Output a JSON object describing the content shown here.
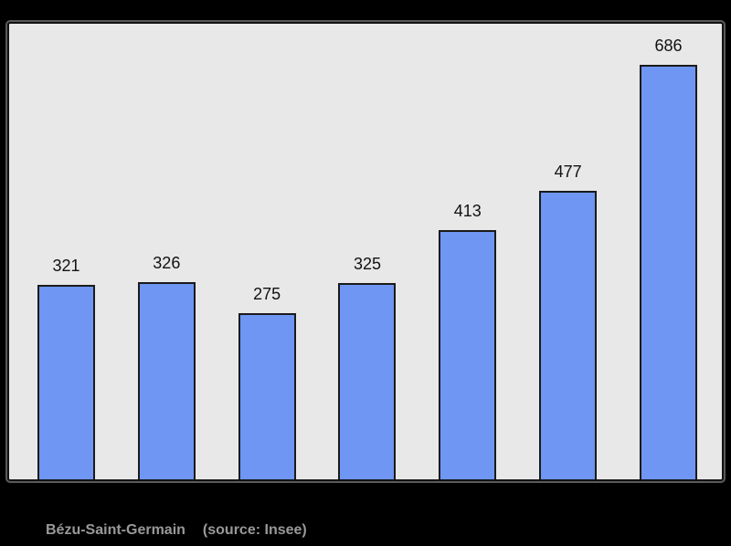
{
  "page": {
    "background_color": "#000000"
  },
  "chart": {
    "panel_background": "#E8E8E8",
    "panel_border_color": "#121212",
    "bar_fill_color": "#6E96F2",
    "bar_border_color": "#1A1A1A",
    "value_label_color": "#111111"
  },
  "chart_data": {
    "type": "bar",
    "values": [
      321,
      326,
      275,
      325,
      413,
      477,
      686
    ],
    "data_labels_shown": true,
    "title": "",
    "xlabel": "",
    "ylabel": "",
    "ylim": [
      0,
      760
    ],
    "grid": false,
    "legend": false,
    "axes_visible": false
  },
  "caption": {
    "commune": "Bézu-Saint-Germain",
    "source": "(source: Insee)",
    "color": "#999999"
  }
}
